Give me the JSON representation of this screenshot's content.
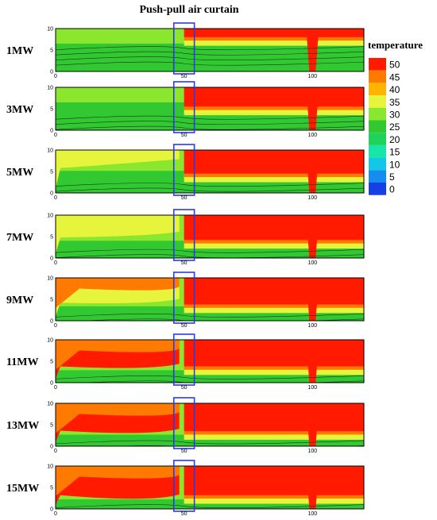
{
  "figure_title": "Push-pull air curtain",
  "chart_data": {
    "type": "heatmap",
    "title": "Push-pull air curtain",
    "x_ticks": [
      0,
      50,
      100
    ],
    "y_ticks": [
      0,
      5,
      10
    ],
    "xlim": [
      0,
      120
    ],
    "ylim": [
      0,
      10
    ],
    "legend": {
      "title": "temperature",
      "placement": "right",
      "levels": [
        {
          "value": "50",
          "color": "#ff1a00"
        },
        {
          "value": "45",
          "color": "#ff7a00"
        },
        {
          "value": "40",
          "color": "#ffb400"
        },
        {
          "value": "35",
          "color": "#e6f53c"
        },
        {
          "value": "30",
          "color": "#8be62e"
        },
        {
          "value": "25",
          "color": "#32c832"
        },
        {
          "value": "20",
          "color": "#1ed25a"
        },
        {
          "value": "15",
          "color": "#18e6a8"
        },
        {
          "value": "10",
          "color": "#12c8e6"
        },
        {
          "value": "5",
          "color": "#148cf0"
        },
        {
          "value": "0",
          "color": "#1440e6"
        }
      ]
    },
    "curtain_region": {
      "x_from": 46,
      "x_to": 54
    },
    "panels": [
      {
        "label": "1MW",
        "hot_ceiling": 0.2,
        "left_warm": 0.0
      },
      {
        "label": "3MW",
        "hot_ceiling": 0.45,
        "left_warm": 0.0
      },
      {
        "label": "5MW",
        "hot_ceiling": 0.55,
        "left_warm": 0.3
      },
      {
        "label": "7MW",
        "hot_ceiling": 0.58,
        "left_warm": 0.55
      },
      {
        "label": "9MW",
        "hot_ceiling": 0.62,
        "left_warm": 0.7
      },
      {
        "label": "11MW",
        "hot_ceiling": 0.62,
        "left_warm": 0.8
      },
      {
        "label": "13MW",
        "hot_ceiling": 0.65,
        "left_warm": 0.85
      },
      {
        "label": "15MW",
        "hot_ceiling": 0.68,
        "left_warm": 0.95
      }
    ]
  }
}
